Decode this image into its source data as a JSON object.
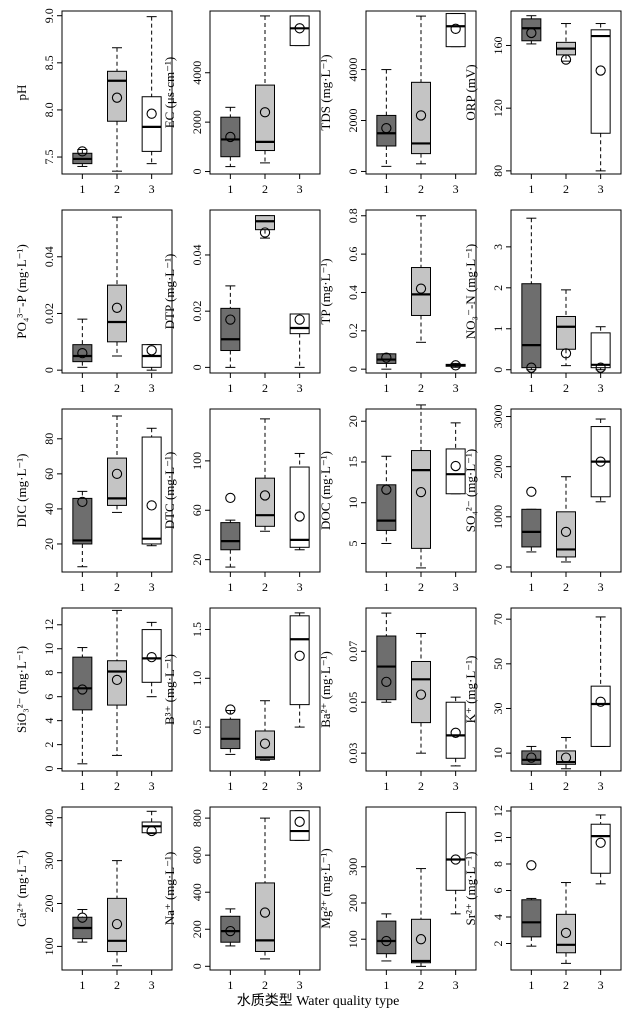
{
  "x_axis_title": "水质类型 Water quality type",
  "chart_data": [
    {
      "type": "box",
      "ylabel": "pH",
      "yticks": [
        "7.5",
        "8.0",
        "8.5",
        "9.0"
      ],
      "ylim": [
        7.32,
        9.05
      ],
      "categories": [
        "1",
        "2",
        "3"
      ],
      "boxes": [
        {
          "min": 7.4,
          "q1": 7.43,
          "median": 7.48,
          "q3": 7.54,
          "max": 7.58,
          "mean": 7.56
        },
        {
          "min": 7.35,
          "q1": 7.88,
          "median": 8.31,
          "q3": 8.41,
          "max": 8.66,
          "mean": 8.13
        },
        {
          "min": 7.43,
          "q1": 7.56,
          "median": 7.82,
          "q3": 8.14,
          "max": 8.99,
          "mean": 7.96
        }
      ]
    },
    {
      "type": "box",
      "ylabel": "EC (μs·cm⁻¹)",
      "yticks": [
        "0",
        "2000",
        "4000"
      ],
      "ylim": [
        -100,
        6500
      ],
      "categories": [
        "1",
        "2",
        "3"
      ],
      "boxes": [
        {
          "min": 200,
          "q1": 600,
          "median": 1300,
          "q3": 2200,
          "max": 2600,
          "mean": 1400
        },
        {
          "min": 350,
          "q1": 850,
          "median": 1200,
          "q3": 3500,
          "max": 6300,
          "mean": 2400
        },
        {
          "min": 5100,
          "q1": 5100,
          "median": 5800,
          "q3": 6300,
          "max": 6300,
          "mean": 5800
        }
      ]
    },
    {
      "type": "box",
      "ylabel": "TDS (mg·L⁻¹)",
      "yticks": [
        "0",
        "2000",
        "4000"
      ],
      "ylim": [
        -100,
        6300
      ],
      "categories": [
        "1",
        "2",
        "3"
      ],
      "boxes": [
        {
          "min": 200,
          "q1": 1000,
          "median": 1500,
          "q3": 2200,
          "max": 4000,
          "mean": 1700
        },
        {
          "min": 300,
          "q1": 700,
          "median": 1100,
          "q3": 3500,
          "max": 6100,
          "mean": 2200
        },
        {
          "min": 4900,
          "q1": 4900,
          "median": 5700,
          "q3": 6200,
          "max": 6200,
          "mean": 5600
        }
      ]
    },
    {
      "type": "box",
      "ylabel": "ORP (mV)",
      "yticks": [
        "80",
        "120",
        "160"
      ],
      "ylim": [
        78,
        182
      ],
      "categories": [
        "1",
        "2",
        "3"
      ],
      "boxes": [
        {
          "min": 161,
          "q1": 163,
          "median": 171,
          "q3": 177,
          "max": 179,
          "mean": 168
        },
        {
          "min": 150,
          "q1": 154,
          "median": 158,
          "q3": 162,
          "max": 174,
          "mean": 151
        },
        {
          "min": 80,
          "q1": 104,
          "median": 166,
          "q3": 170,
          "max": 174,
          "mean": 144
        }
      ]
    },
    {
      "type": "box",
      "ylabel": "PO₄³⁻-P (mg·L⁻¹)",
      "yticks": [
        "0",
        "0.02",
        "0.04"
      ],
      "ylim": [
        -0.001,
        0.0565
      ],
      "categories": [
        "1",
        "2",
        "3"
      ],
      "boxes": [
        {
          "min": 0.001,
          "q1": 0.003,
          "median": 0.005,
          "q3": 0.009,
          "max": 0.018,
          "mean": 0.006
        },
        {
          "min": 0.005,
          "q1": 0.01,
          "median": 0.017,
          "q3": 0.03,
          "max": 0.054,
          "mean": 0.022
        },
        {
          "min": 0.0,
          "q1": 0.001,
          "median": 0.005,
          "q3": 0.009,
          "max": 0.009,
          "mean": 0.007
        }
      ]
    },
    {
      "type": "box",
      "ylabel": "DTP (mg·L⁻¹)",
      "yticks": [
        "0",
        "0.02",
        "0.04"
      ],
      "ylim": [
        -0.002,
        0.056
      ],
      "categories": [
        "1",
        "2",
        "3"
      ],
      "boxes": [
        {
          "min": 0.0,
          "q1": 0.006,
          "median": 0.01,
          "q3": 0.021,
          "max": 0.029,
          "mean": 0.017
        },
        {
          "min": 0.046,
          "q1": 0.049,
          "median": 0.052,
          "q3": 0.054,
          "max": 0.054,
          "mean": 0.048
        },
        {
          "min": 0.0,
          "q1": 0.012,
          "median": 0.014,
          "q3": 0.019,
          "max": 0.019,
          "mean": 0.017
        }
      ]
    },
    {
      "type": "box",
      "ylabel": "TP (mg·L⁻¹)",
      "yticks": [
        "0",
        "0.2",
        "0.4",
        "0.6",
        "0.8"
      ],
      "ylim": [
        -0.02,
        0.83
      ],
      "categories": [
        "1",
        "2",
        "3"
      ],
      "boxes": [
        {
          "min": 0.0,
          "q1": 0.03,
          "median": 0.05,
          "q3": 0.08,
          "max": 0.08,
          "mean": 0.06
        },
        {
          "min": 0.14,
          "q1": 0.28,
          "median": 0.39,
          "q3": 0.53,
          "max": 0.8,
          "mean": 0.42
        },
        {
          "min": 0.01,
          "q1": 0.015,
          "median": 0.02,
          "q3": 0.025,
          "max": 0.03,
          "mean": 0.02
        }
      ]
    },
    {
      "type": "box",
      "ylabel": "NO₃⁻-N (mg·L⁻¹)",
      "yticks": [
        "0",
        "1",
        "2",
        "3"
      ],
      "ylim": [
        -0.08,
        3.9
      ],
      "categories": [
        "1",
        "2",
        "3"
      ],
      "boxes": [
        {
          "min": 0.0,
          "q1": 0.05,
          "median": 0.6,
          "q3": 2.1,
          "max": 3.7,
          "mean": 0.05
        },
        {
          "min": 0.1,
          "q1": 0.5,
          "median": 1.05,
          "q3": 1.3,
          "max": 1.95,
          "mean": 0.4
        },
        {
          "min": 0.0,
          "q1": 0.05,
          "median": 0.12,
          "q3": 0.9,
          "max": 1.05,
          "mean": 0.05
        }
      ]
    },
    {
      "type": "box",
      "ylabel": "DIC (mg·L⁻¹)",
      "yticks": [
        "20",
        "40",
        "60",
        "80"
      ],
      "ylim": [
        4,
        97
      ],
      "categories": [
        "1",
        "2",
        "3"
      ],
      "boxes": [
        {
          "min": 7,
          "q1": 20,
          "median": 22,
          "q3": 46,
          "max": 50,
          "mean": 44
        },
        {
          "min": 38,
          "q1": 42,
          "median": 46,
          "q3": 69,
          "max": 93,
          "mean": 60
        },
        {
          "min": 19,
          "q1": 20,
          "median": 23,
          "q3": 81,
          "max": 86,
          "mean": 42
        }
      ]
    },
    {
      "type": "box",
      "ylabel": "DTC (mg·L⁻¹)",
      "yticks": [
        "20",
        "60",
        "100"
      ],
      "ylim": [
        10,
        142
      ],
      "categories": [
        "1",
        "2",
        "3"
      ],
      "boxes": [
        {
          "min": 14,
          "q1": 28,
          "median": 35,
          "q3": 50,
          "max": 52,
          "mean": 70
        },
        {
          "min": 43,
          "q1": 47,
          "median": 56,
          "q3": 86,
          "max": 134,
          "mean": 72
        },
        {
          "min": 28,
          "q1": 30,
          "median": 36,
          "q3": 95,
          "max": 106,
          "mean": 55
        }
      ]
    },
    {
      "type": "box",
      "ylabel": "DOC (mg·L⁻¹)",
      "yticks": [
        "5",
        "10",
        "15",
        "20"
      ],
      "ylim": [
        1.5,
        21.5
      ],
      "categories": [
        "1",
        "2",
        "3"
      ],
      "boxes": [
        {
          "min": 5,
          "q1": 6.6,
          "median": 7.8,
          "q3": 12.2,
          "max": 15.7,
          "mean": 11.6
        },
        {
          "min": 2,
          "q1": 4.4,
          "median": 14,
          "q3": 16.4,
          "max": 22,
          "mean": 11.3
        },
        {
          "min": 11.1,
          "q1": 11.1,
          "median": 13.5,
          "q3": 16.6,
          "max": 19.8,
          "mean": 14.5
        }
      ]
    },
    {
      "type": "box",
      "ylabel": "SO₄²⁻ (mg·L⁻¹)",
      "yticks": [
        "0",
        "1000",
        "2000",
        "3000"
      ],
      "ylim": [
        -100,
        3150
      ],
      "categories": [
        "1",
        "2",
        "3"
      ],
      "boxes": [
        {
          "min": 300,
          "q1": 400,
          "median": 700,
          "q3": 1150,
          "max": 1150,
          "mean": 1500
        },
        {
          "min": 100,
          "q1": 200,
          "median": 350,
          "q3": 1100,
          "max": 1800,
          "mean": 700
        },
        {
          "min": 1300,
          "q1": 1400,
          "median": 2100,
          "q3": 2800,
          "max": 2950,
          "mean": 2100
        }
      ]
    },
    {
      "type": "box",
      "ylabel": "SiO₃²⁻ (mg·L⁻¹)",
      "yticks": [
        "0",
        "2",
        "4",
        "6",
        "8",
        "10",
        "12"
      ],
      "ylim": [
        -0.2,
        13.4
      ],
      "categories": [
        "1",
        "2",
        "3"
      ],
      "boxes": [
        {
          "min": 0.4,
          "q1": 4.9,
          "median": 6.7,
          "q3": 9.3,
          "max": 10.1,
          "mean": 6.6
        },
        {
          "min": 1.1,
          "q1": 5.3,
          "median": 8.1,
          "q3": 9.0,
          "max": 13.2,
          "mean": 7.4
        },
        {
          "min": 6.0,
          "q1": 7.2,
          "median": 9.2,
          "q3": 11.6,
          "max": 12.2,
          "mean": 9.3
        }
      ]
    },
    {
      "type": "box",
      "ylabel": "B³⁺ (mg·L⁻¹)",
      "yticks": [
        "0.5",
        "1.0",
        "1.5"
      ],
      "ylim": [
        0.05,
        1.72
      ],
      "categories": [
        "1",
        "2",
        "3"
      ],
      "boxes": [
        {
          "min": 0.22,
          "q1": 0.28,
          "median": 0.38,
          "q3": 0.58,
          "max": 0.67,
          "mean": 0.68
        },
        {
          "min": 0.16,
          "q1": 0.17,
          "median": 0.19,
          "q3": 0.46,
          "max": 0.77,
          "mean": 0.33
        },
        {
          "min": 0.5,
          "q1": 0.73,
          "median": 1.4,
          "q3": 1.64,
          "max": 1.67,
          "mean": 1.23
        }
      ]
    },
    {
      "type": "box",
      "ylabel": "Ba²⁺ (mg·L⁻¹)",
      "yticks": [
        "0.03",
        "0.05",
        "0.07"
      ],
      "ylim": [
        0.023,
        0.087
      ],
      "categories": [
        "1",
        "2",
        "3"
      ],
      "boxes": [
        {
          "min": 0.05,
          "q1": 0.051,
          "median": 0.064,
          "q3": 0.076,
          "max": 0.085,
          "mean": 0.058
        },
        {
          "min": 0.03,
          "q1": 0.042,
          "median": 0.059,
          "q3": 0.066,
          "max": 0.077,
          "mean": 0.053
        },
        {
          "min": 0.025,
          "q1": 0.028,
          "median": 0.037,
          "q3": 0.05,
          "max": 0.052,
          "mean": 0.038
        }
      ]
    },
    {
      "type": "box",
      "ylabel": "K⁺ (mg·L⁻¹)",
      "yticks": [
        "10",
        "30",
        "50",
        "70"
      ],
      "ylim": [
        2,
        75
      ],
      "categories": [
        "1",
        "2",
        "3"
      ],
      "boxes": [
        {
          "min": 5,
          "q1": 5,
          "median": 7,
          "q3": 11,
          "max": 13,
          "mean": 8
        },
        {
          "min": 3,
          "q1": 5,
          "median": 6,
          "q3": 11,
          "max": 17,
          "mean": 8
        },
        {
          "min": 13,
          "q1": 13,
          "median": 32,
          "q3": 40,
          "max": 71,
          "mean": 33
        }
      ]
    },
    {
      "type": "box",
      "ylabel": "Ca²⁺ (mg·L⁻¹)",
      "yticks": [
        "100",
        "200",
        "300",
        "400"
      ],
      "ylim": [
        45,
        425
      ],
      "categories": [
        "1",
        "2",
        "3"
      ],
      "boxes": [
        {
          "min": 110,
          "q1": 118,
          "median": 143,
          "q3": 168,
          "max": 186,
          "mean": 167
        },
        {
          "min": 55,
          "q1": 88,
          "median": 113,
          "q3": 212,
          "max": 300,
          "mean": 152
        },
        {
          "min": 363,
          "q1": 365,
          "median": 380,
          "q3": 390,
          "max": 415,
          "mean": 369
        }
      ]
    },
    {
      "type": "box",
      "ylabel": "Na⁺ (mg·L⁻¹)",
      "yticks": [
        "0",
        "200",
        "400",
        "600",
        "800"
      ],
      "ylim": [
        -20,
        860
      ],
      "categories": [
        "1",
        "2",
        "3"
      ],
      "boxes": [
        {
          "min": 110,
          "q1": 130,
          "median": 190,
          "q3": 270,
          "max": 310,
          "mean": 190
        },
        {
          "min": 40,
          "q1": 80,
          "median": 140,
          "q3": 450,
          "max": 800,
          "mean": 290
        },
        {
          "min": 680,
          "q1": 680,
          "median": 730,
          "q3": 840,
          "max": 840,
          "mean": 780
        }
      ]
    },
    {
      "type": "box",
      "ylabel": "Mg²⁺ (mg·L⁻¹)",
      "yticks": [
        "100",
        "200",
        "300"
      ],
      "ylim": [
        15,
        465
      ],
      "categories": [
        "1",
        "2",
        "3"
      ],
      "boxes": [
        {
          "min": 40,
          "q1": 60,
          "median": 95,
          "q3": 150,
          "max": 170,
          "mean": 95
        },
        {
          "min": 25,
          "q1": 35,
          "median": 40,
          "q3": 155,
          "max": 295,
          "mean": 100
        },
        {
          "min": 170,
          "q1": 235,
          "median": 320,
          "q3": 450,
          "max": 450,
          "mean": 320
        }
      ]
    },
    {
      "type": "box",
      "ylabel": "Sr²⁺ (mg·L⁻¹)",
      "yticks": [
        "2",
        "4",
        "6",
        "8",
        "10",
        "12"
      ],
      "ylim": [
        0,
        12.3
      ],
      "categories": [
        "1",
        "2",
        "3"
      ],
      "boxes": [
        {
          "min": 1.8,
          "q1": 2.5,
          "median": 3.6,
          "q3": 5.3,
          "max": 5.4,
          "mean": 7.9
        },
        {
          "min": 0.5,
          "q1": 1.3,
          "median": 1.9,
          "q3": 4.2,
          "max": 6.6,
          "mean": 2.8
        },
        {
          "min": 6.5,
          "q1": 7.3,
          "median": 10.1,
          "q3": 11.0,
          "max": 11.7,
          "mean": 9.6
        }
      ]
    }
  ],
  "colors": {
    "group1": "#6e6e6e",
    "group2": "#c4c4c4",
    "group3": "#ffffff",
    "stroke": "#000000"
  }
}
